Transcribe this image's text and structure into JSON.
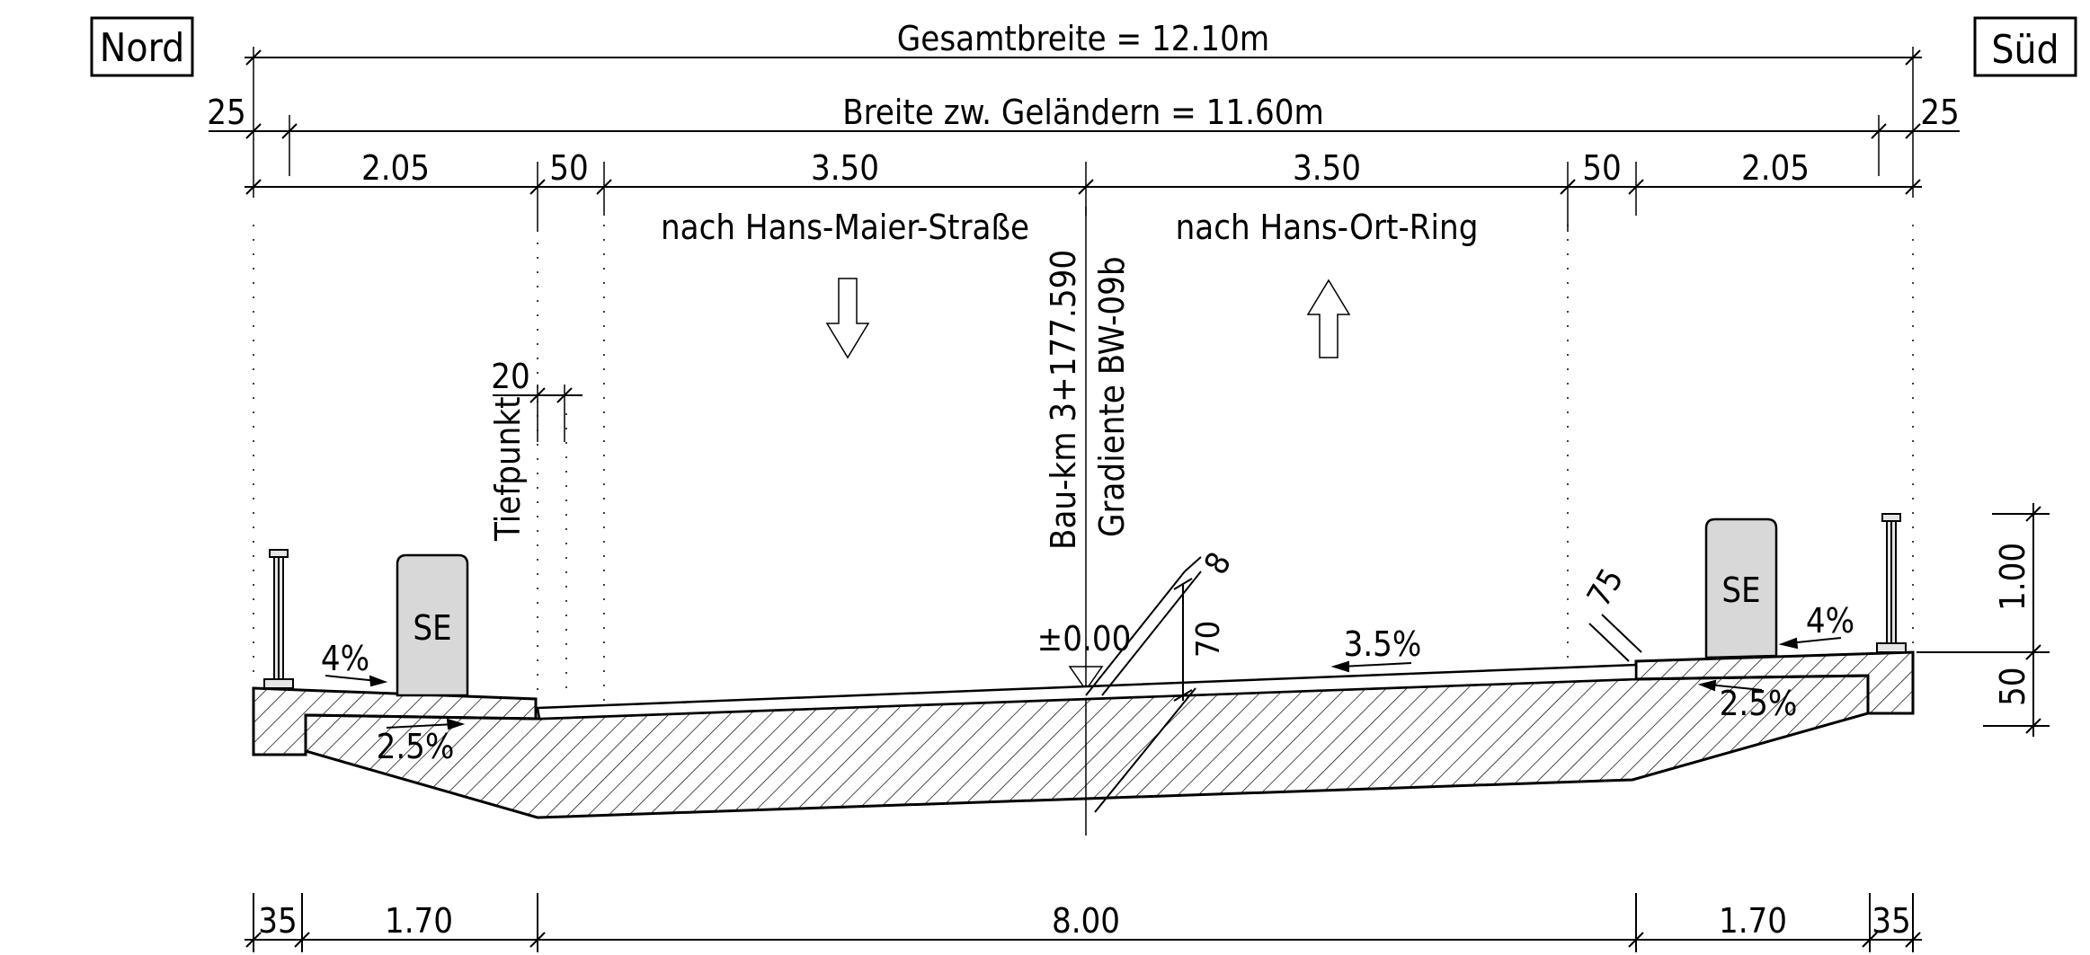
{
  "orientation": {
    "north": "Nord",
    "south": "Süd"
  },
  "dimensions": {
    "total_width": "Gesamtbreite = 12.10m",
    "railing_width": "Breite zw. Geländern = 11.60m",
    "edge_left": "25",
    "edge_right": "25",
    "top_segments": [
      "2.05",
      "50",
      "3.50",
      "3.50",
      "50",
      "2.05"
    ],
    "bottom_segments": [
      "35",
      "1.70",
      "8.00",
      "1.70",
      "35"
    ],
    "low_point_offset": "20",
    "height_upper": "1.00",
    "height_lower": "50",
    "surface_thickness": "8",
    "structure_depth": "70",
    "curb_height": "75"
  },
  "lanes": {
    "left": "nach Hans-Maier-Straße",
    "right": "nach Hans-Ort-Ring"
  },
  "axis": {
    "station": "Bau-km 3+177.590",
    "gradient": "Gradiente BW-09b",
    "reference_level": "±0.00"
  },
  "labels": {
    "low_point": "Tiefpunkt",
    "se_left": "SE",
    "se_right": "SE"
  },
  "slopes": {
    "left_walkway": "4%",
    "left_underside": "2.5%",
    "deck": "3.5%",
    "right_walkway": "4%",
    "right_underside": "2.5%"
  }
}
